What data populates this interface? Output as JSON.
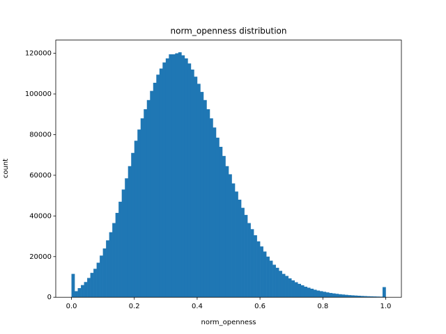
{
  "chart_data": {
    "type": "histogram",
    "title": "norm_openness distribution",
    "xlabel": "norm_openness",
    "ylabel": "count",
    "color": "#1f77b4",
    "bins": [
      0,
      0.01,
      0.02,
      0.03,
      0.04,
      0.05,
      0.06,
      0.07,
      0.08,
      0.09,
      0.1,
      0.11,
      0.12,
      0.13,
      0.14,
      0.15,
      0.16,
      0.17,
      0.18,
      0.19,
      0.2,
      0.21,
      0.22,
      0.23,
      0.24,
      0.25,
      0.26,
      0.27,
      0.28,
      0.29,
      0.3,
      0.31,
      0.32,
      0.33,
      0.34,
      0.35,
      0.36,
      0.37,
      0.38,
      0.39,
      0.4,
      0.41,
      0.42,
      0.43,
      0.44,
      0.45,
      0.46,
      0.47,
      0.48,
      0.49,
      0.5,
      0.51,
      0.52,
      0.53,
      0.54,
      0.55,
      0.56,
      0.57,
      0.58,
      0.59,
      0.6,
      0.61,
      0.62,
      0.63,
      0.64,
      0.65,
      0.66,
      0.67,
      0.68,
      0.69,
      0.7,
      0.71,
      0.72,
      0.73,
      0.74,
      0.75,
      0.76,
      0.77,
      0.78,
      0.79,
      0.8,
      0.81,
      0.82,
      0.83,
      0.84,
      0.85,
      0.86,
      0.87,
      0.88,
      0.89,
      0.9,
      0.91,
      0.92,
      0.93,
      0.94,
      0.95,
      0.96,
      0.97,
      0.98,
      0.99,
      1
    ],
    "counts": [
      11500,
      3000,
      4500,
      6000,
      7500,
      9500,
      12000,
      14000,
      17000,
      20500,
      24000,
      28000,
      32000,
      36500,
      41500,
      47000,
      53000,
      58500,
      64500,
      71000,
      77000,
      82500,
      88000,
      92500,
      97000,
      101500,
      105500,
      109500,
      112500,
      115500,
      117500,
      119500,
      119500,
      120000,
      120500,
      119000,
      117500,
      115000,
      112000,
      108500,
      105000,
      101000,
      97000,
      92500,
      88000,
      83500,
      78500,
      74000,
      69500,
      64500,
      60500,
      56000,
      52000,
      48000,
      44000,
      40500,
      36500,
      33500,
      30500,
      27500,
      25000,
      22500,
      20000,
      18000,
      16000,
      14500,
      13000,
      11500,
      10500,
      9300,
      8300,
      7400,
      6600,
      5900,
      5200,
      4700,
      4200,
      3700,
      3300,
      3000,
      2700,
      2400,
      2100,
      1900,
      1700,
      1500,
      1350,
      1200,
      1050,
      950,
      850,
      750,
      650,
      580,
      500,
      450,
      400,
      350,
      300,
      5000
    ],
    "xlim": [
      -0.05,
      1.05
    ],
    "ylim": [
      0,
      126500
    ],
    "xticks": [
      {
        "value": 0,
        "label": "0.0"
      },
      0.2,
      0.4,
      0.6,
      0.8,
      {
        "value": 1,
        "label": "1.0"
      }
    ],
    "yticks": [
      0,
      20000,
      40000,
      60000,
      80000,
      100000,
      120000
    ]
  }
}
